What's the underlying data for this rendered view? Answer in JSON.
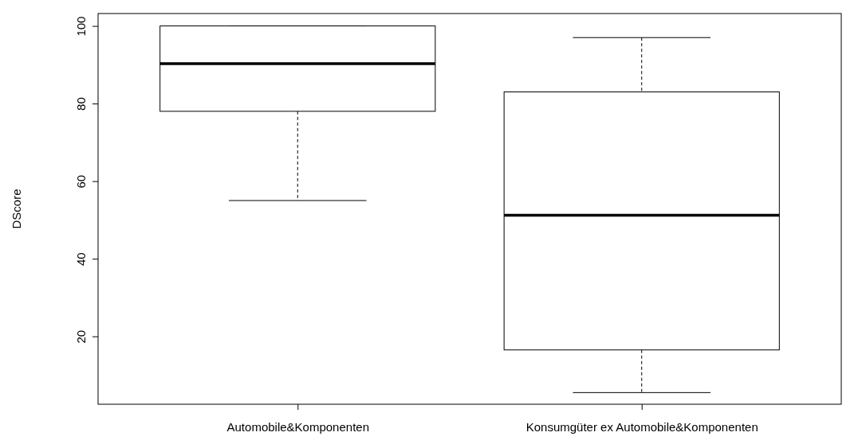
{
  "chart_data": {
    "type": "box",
    "ylabel": "DScore",
    "categories": [
      "Automobile&Komponenten",
      "Konsumgüter ex Automobile&Komponenten"
    ],
    "boxes": [
      {
        "low": 55,
        "q1": 78,
        "median": 90.3,
        "q3": 100,
        "high": 100
      },
      {
        "low": 5.5,
        "q1": 16.5,
        "median": 51.2,
        "q3": 83,
        "high": 97
      }
    ],
    "color": "#ffffff",
    "ylim": [
      2.5,
      103.2
    ],
    "yticks": [
      20,
      40,
      60,
      80,
      100
    ],
    "grid": false
  }
}
